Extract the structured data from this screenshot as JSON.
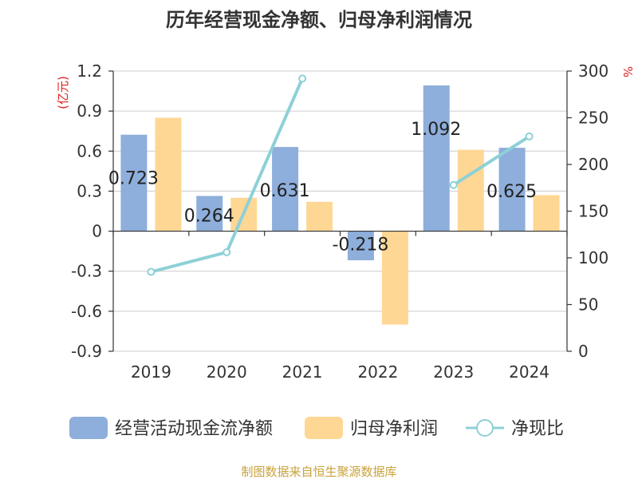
{
  "title": "历年经营现金净额、归母净利润情况",
  "footer": "制图数据来自恒生聚源数据库",
  "chart_data": {
    "type": "bar",
    "categories": [
      "2019",
      "2020",
      "2021",
      "2022",
      "2023",
      "2024"
    ],
    "series": [
      {
        "name": "经营活动现金流净额",
        "kind": "bar",
        "axis": "left",
        "color": "#8eaedb",
        "values": [
          0.723,
          0.264,
          0.631,
          -0.218,
          1.092,
          0.625
        ],
        "labels": [
          "0.723",
          "0.264",
          "0.631",
          "-0.218",
          "1.092",
          "0.625"
        ]
      },
      {
        "name": "归母净利润",
        "kind": "bar",
        "axis": "left",
        "color": "#ffd794",
        "values": [
          0.85,
          0.25,
          0.22,
          -0.7,
          0.61,
          0.27
        ]
      },
      {
        "name": "净现比",
        "kind": "line",
        "axis": "right",
        "color": "#8ed0d7",
        "values": [
          85,
          106,
          292,
          null,
          178,
          230
        ]
      }
    ],
    "left_axis": {
      "label": "(亿元)",
      "min": -0.9,
      "max": 1.2,
      "ticks": [
        "1.2",
        "0.9",
        "0.6",
        "0.3",
        "0",
        "-0.3",
        "-0.6",
        "-0.9"
      ],
      "tick_values": [
        1.2,
        0.9,
        0.6,
        0.3,
        0,
        -0.3,
        -0.6,
        -0.9
      ]
    },
    "right_axis": {
      "label": "%",
      "min": 0,
      "max": 300,
      "ticks": [
        "300",
        "250",
        "200",
        "150",
        "100",
        "50",
        "0"
      ],
      "tick_values": [
        300,
        250,
        200,
        150,
        100,
        50,
        0
      ]
    },
    "grid": true,
    "legend_position": "bottom"
  }
}
